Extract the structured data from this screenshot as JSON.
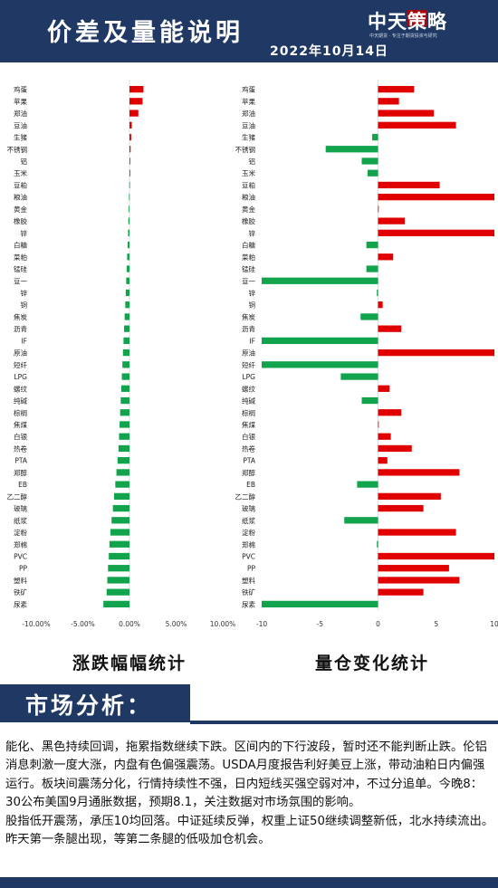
{
  "header": {
    "title": "价差及量能说明",
    "date": "2022年10月14日",
    "logo_main": "中天策略",
    "logo_sub": "中天期货 · 专注于期货投资与研究"
  },
  "colors": {
    "primary": "#1f3864",
    "up": "#e00000",
    "down": "#12a44c"
  },
  "captions": {
    "left": "涨跌幅幅统计",
    "right": "量仓变化统计"
  },
  "section": {
    "title": "市场分析："
  },
  "analysis": [
    "能化、黑色持续回调，拖累指数继续下跌。区间内的下行波段，暂时还不能判断止跌。伦铝消息刺激一度大涨，内盘有色偏强震荡。USDA月度报告利好美豆上涨，带动油粕日内偏强运行。板块间震荡分化，行情持续性不强，日内短线买强空弱对冲，不过分追单。今晚8：30公布美国9月通胀数据，预期8.1，关注数据对市场氛围的影响。",
    "股指低开震荡，承压10均回落。中证延续反弹，权重上证50继续调整新低，北水持续流出。昨天第一条腿出现，等第二条腿的低吸加仓机会。"
  ],
  "chart_data": [
    {
      "type": "bar",
      "orientation": "horizontal",
      "title": "",
      "caption": "涨跌幅幅统计",
      "xlim": [
        -0.1,
        0.1
      ],
      "ticks": [
        -0.1,
        -0.05,
        0.0,
        0.05,
        0.1
      ],
      "tick_labels": [
        "-10.00%",
        "-5.00%",
        "0.00%",
        "5.00%",
        "10.00%"
      ],
      "categories": [
        "鸡蛋",
        "苹果",
        "郑油",
        "豆油",
        "生猪",
        "不锈钢",
        "铝",
        "玉米",
        "豆粕",
        "粮油",
        "黄金",
        "橡胶",
        "锌",
        "白糖",
        "菜粕",
        "锰硅",
        "豆一",
        "锌",
        "铜",
        "焦炭",
        "沥青",
        "IF",
        "原油",
        "短纤",
        "LPG",
        "螺纹",
        "纯碱",
        "棕榈",
        "焦煤",
        "白银",
        "热卷",
        "PTA",
        "郑醇",
        "EB",
        "乙二醇",
        "玻璃",
        "纸浆",
        "淀粉",
        "郑棉",
        "PVC",
        "PP",
        "塑料",
        "铁矿",
        "尿素"
      ],
      "values": [
        0.015,
        0.014,
        0.0095,
        0.0025,
        0.0018,
        0.0012,
        0.0008,
        0.0002,
        -0.0002,
        -0.0005,
        -0.0008,
        -0.0012,
        -0.0015,
        -0.002,
        -0.0025,
        -0.003,
        -0.0035,
        -0.004,
        -0.0045,
        -0.0052,
        -0.0058,
        -0.0064,
        -0.007,
        -0.0076,
        -0.0082,
        -0.0088,
        -0.0094,
        -0.01,
        -0.0106,
        -0.0112,
        -0.0118,
        -0.0128,
        -0.014,
        -0.0152,
        -0.0165,
        -0.0178,
        -0.0192,
        -0.0205,
        -0.0215,
        -0.0222,
        -0.023,
        -0.0238,
        -0.0245,
        -0.028
      ]
    },
    {
      "type": "bar",
      "orientation": "horizontal",
      "title": "",
      "caption": "量仓变化统计",
      "xlim": [
        -10,
        10
      ],
      "ticks": [
        -10,
        -5,
        0,
        5,
        10
      ],
      "tick_labels": [
        "-10",
        "-5",
        "0",
        "5",
        "10"
      ],
      "categories": [
        "鸡蛋",
        "苹果",
        "郑油",
        "豆油",
        "生猪",
        "不锈钢",
        "铝",
        "玉米",
        "豆粕",
        "粮油",
        "黄金",
        "橡胶",
        "锌",
        "白糖",
        "菜粕",
        "锰硅",
        "豆一",
        "锌",
        "铜",
        "焦炭",
        "沥青",
        "IF",
        "原油",
        "短纤",
        "LPG",
        "螺纹",
        "纯碱",
        "棕榈",
        "焦煤",
        "白银",
        "热卷",
        "PTA",
        "郑醇",
        "EB",
        "乙二醇",
        "玻璃",
        "纸浆",
        "淀粉",
        "郑棉",
        "PVC",
        "PP",
        "塑料",
        "铁矿",
        "尿素"
      ],
      "values": [
        3.1,
        1.8,
        4.8,
        6.7,
        -0.5,
        -4.5,
        -1.4,
        -0.9,
        5.3,
        10,
        0,
        2.3,
        10,
        -1.0,
        1.3,
        -1.0,
        -10,
        -0.1,
        0.4,
        -1.5,
        2.0,
        -10,
        10,
        -10,
        -3.2,
        1.0,
        -1.4,
        2.0,
        0,
        1.1,
        2.9,
        0.8,
        7.0,
        -1.8,
        5.4,
        3.9,
        -2.9,
        6.7,
        -0.1,
        10,
        6.1,
        7.0,
        3.9,
        -10
      ]
    }
  ]
}
